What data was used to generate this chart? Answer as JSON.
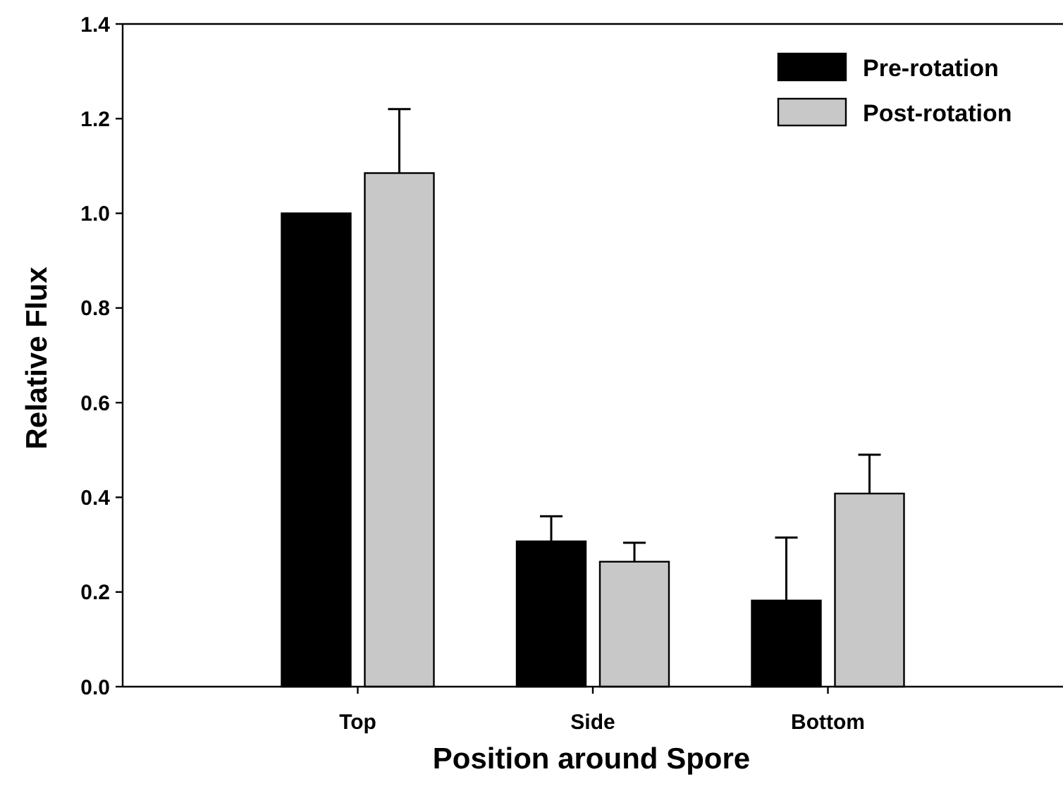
{
  "chart_data": {
    "type": "bar",
    "xlabel": "Position around Spore",
    "ylabel": "Relative Flux",
    "categories": [
      "Top",
      "Side",
      "Bottom"
    ],
    "series": [
      {
        "name": "Pre-rotation",
        "color": "#000000",
        "values": [
          1.0,
          0.307,
          0.182
        ],
        "errors": [
          null,
          [
            0.307,
            0.36
          ],
          [
            0.182,
            0.315
          ]
        ]
      },
      {
        "name": "Post-rotation",
        "color": "#c8c8c8",
        "values": [
          1.085,
          0.264,
          0.408
        ],
        "errors": [
          [
            1.085,
            1.22
          ],
          [
            0.264,
            0.304
          ],
          [
            0.408,
            0.49
          ]
        ]
      }
    ],
    "ylim": [
      0,
      1.4
    ],
    "yticks": [
      {
        "value": 0,
        "label": "0.0"
      },
      {
        "value": 0.2,
        "label": "0.2"
      },
      {
        "value": 0.4,
        "label": "0.4"
      },
      {
        "value": 0.6,
        "label": "0.6"
      },
      {
        "value": 0.8,
        "label": "0.8"
      },
      {
        "value": 1.0,
        "label": "1.0"
      },
      {
        "value": 1.2,
        "label": "1.2"
      },
      {
        "value": 1.4,
        "label": "1.4"
      }
    ],
    "legend": "top right",
    "grid": false
  }
}
